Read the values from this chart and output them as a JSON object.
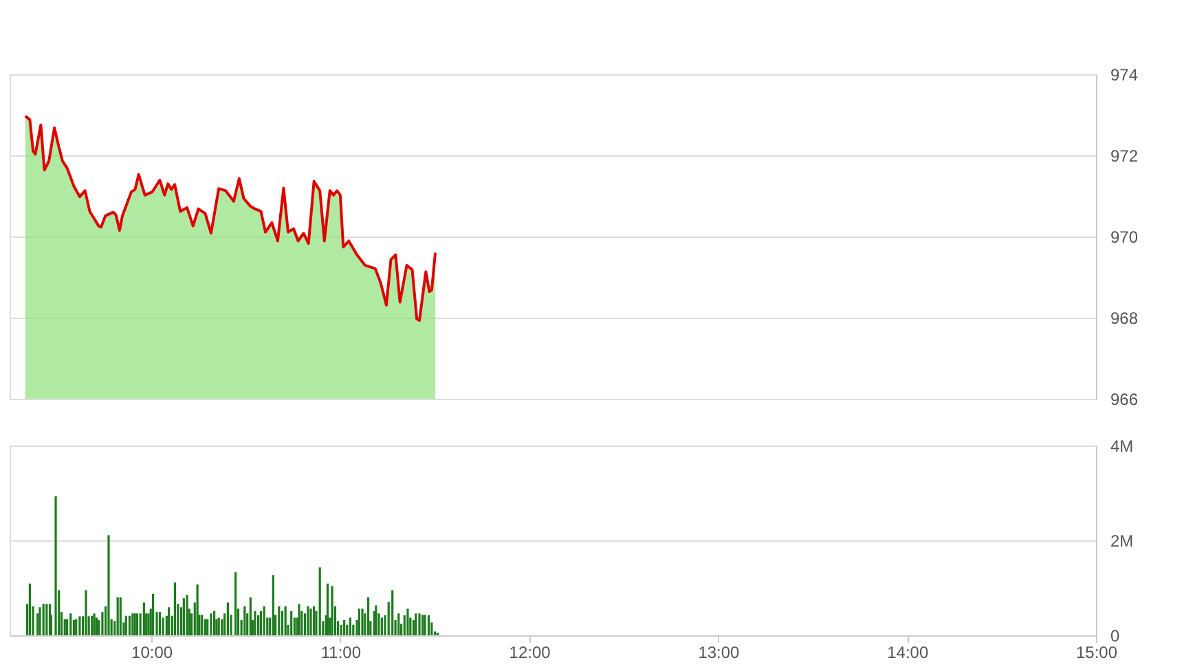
{
  "chart_data": [
    {
      "type": "area",
      "tick_labels": "y",
      "grid": "y",
      "xlim": [
        9.25,
        15
      ],
      "ylim": [
        966,
        974
      ],
      "yticks": [
        966,
        968,
        970,
        972,
        974
      ],
      "x": [
        9.333,
        9.357,
        9.374,
        9.386,
        9.415,
        9.434,
        9.458,
        9.487,
        9.511,
        9.53,
        9.554,
        9.59,
        9.621,
        9.649,
        9.674,
        9.721,
        9.734,
        9.757,
        9.798,
        9.813,
        9.832,
        9.847,
        9.894,
        9.914,
        9.933,
        9.966,
        10.005,
        10.045,
        10.07,
        10.088,
        10.106,
        10.124,
        10.153,
        10.189,
        10.221,
        10.249,
        10.285,
        10.316,
        10.357,
        10.393,
        10.436,
        10.465,
        10.489,
        10.525,
        10.549,
        10.58,
        10.604,
        10.638,
        10.669,
        10.7,
        10.724,
        10.753,
        10.777,
        10.806,
        10.832,
        10.861,
        10.892,
        10.916,
        10.945,
        10.964,
        10.983,
        11.0,
        11.016,
        11.045,
        11.088,
        11.131,
        11.185,
        11.213,
        11.244,
        11.268,
        11.293,
        11.316,
        11.352,
        11.381,
        11.405,
        11.419,
        11.453,
        11.472,
        11.484,
        11.503
      ],
      "series": [
        {
          "color": "#e00000",
          "values": [
            972.97,
            972.88,
            972.11,
            972.03,
            972.75,
            971.64,
            971.86,
            972.68,
            972.2,
            971.86,
            971.69,
            971.24,
            970.98,
            971.13,
            970.62,
            970.26,
            970.23,
            970.51,
            970.6,
            970.53,
            970.15,
            970.51,
            971.1,
            971.16,
            971.53,
            971.02,
            971.1,
            971.39,
            971.02,
            971.3,
            971.16,
            971.28,
            970.62,
            970.71,
            970.26,
            970.68,
            970.57,
            970.08,
            971.18,
            971.13,
            970.87,
            971.43,
            970.94,
            970.74,
            970.68,
            970.62,
            970.11,
            970.34,
            969.89,
            971.19,
            970.11,
            970.19,
            969.89,
            970.08,
            969.83,
            971.36,
            971.13,
            969.89,
            971.13,
            971.02,
            971.13,
            971.02,
            969.74,
            969.89,
            969.55,
            969.29,
            969.21,
            968.87,
            968.31,
            969.43,
            969.55,
            968.38,
            969.29,
            969.18,
            967.97,
            967.93,
            969.13,
            968.64,
            968.68,
            969.6
          ]
        }
      ]
    },
    {
      "type": "bar",
      "grid": "y",
      "xlim": [
        9.25,
        15
      ],
      "xticks": [
        {
          "value": 10,
          "label": "10:00"
        },
        {
          "value": 11,
          "label": "11:00"
        },
        {
          "value": 12,
          "label": "12:00"
        },
        {
          "value": 13,
          "label": "13:00"
        },
        {
          "value": 14,
          "label": "14:00"
        },
        {
          "value": 15,
          "label": "15:00"
        }
      ],
      "ylim": [
        0,
        4
      ],
      "yticks": [
        0,
        {
          "value": 2,
          "label": "2M"
        },
        {
          "value": 4,
          "label": "4M"
        }
      ],
      "x": [
        9.343,
        9.357,
        9.374,
        9.398,
        9.41,
        9.429,
        9.446,
        9.463,
        9.47,
        9.494,
        9.511,
        9.525,
        9.542,
        9.554,
        9.573,
        9.59,
        9.602,
        9.621,
        9.638,
        9.654,
        9.669,
        9.686,
        9.698,
        9.71,
        9.722,
        9.741,
        9.758,
        9.774,
        9.789,
        9.806,
        9.822,
        9.837,
        9.854,
        9.866,
        9.885,
        9.901,
        9.913,
        9.925,
        9.942,
        9.961,
        9.973,
        9.985,
        9.997,
        10.009,
        10.029,
        10.045,
        10.062,
        10.081,
        10.093,
        10.11,
        10.125,
        10.141,
        10.158,
        10.172,
        10.189,
        10.201,
        10.213,
        10.23,
        10.244,
        10.254,
        10.268,
        10.285,
        10.297,
        10.316,
        10.333,
        10.345,
        10.357,
        10.374,
        10.388,
        10.405,
        10.422,
        10.446,
        10.46,
        10.477,
        10.494,
        10.508,
        10.525,
        10.537,
        10.549,
        10.566,
        10.58,
        10.597,
        10.614,
        10.628,
        10.645,
        10.657,
        10.676,
        10.693,
        10.71,
        10.724,
        10.741,
        10.758,
        10.772,
        10.782,
        10.796,
        10.813,
        10.829,
        10.844,
        10.861,
        10.873,
        10.892,
        10.909,
        10.925,
        10.933,
        10.945,
        10.957,
        10.973,
        10.988,
        11.005,
        11.021,
        11.036,
        11.053,
        11.069,
        11.088,
        11.1,
        11.117,
        11.131,
        11.148,
        11.16,
        11.18,
        11.189,
        11.204,
        11.22,
        11.237,
        11.256,
        11.276,
        11.292,
        11.309,
        11.323,
        11.34,
        11.357,
        11.371,
        11.388,
        11.4,
        11.419,
        11.436,
        11.448,
        11.468,
        11.484,
        11.501,
        11.515
      ],
      "series": [
        {
          "color": "#1e7b1e",
          "values": [
            0.66,
            1.09,
            0.61,
            0.46,
            0.59,
            0.66,
            0.66,
            0.66,
            0.43,
            2.93,
            0.95,
            0.49,
            0.34,
            0.34,
            0.46,
            0.32,
            0.34,
            0.4,
            0.4,
            0.95,
            0.4,
            0.41,
            0.46,
            0.37,
            0.32,
            0.49,
            0.61,
            2.11,
            0.34,
            0.3,
            0.8,
            0.8,
            0.27,
            0.41,
            0.41,
            0.46,
            0.46,
            0.46,
            0.46,
            0.69,
            0.46,
            0.46,
            0.56,
            0.87,
            0.49,
            0.49,
            0.37,
            0.41,
            0.59,
            0.41,
            1.11,
            0.66,
            0.59,
            0.78,
            0.85,
            0.56,
            0.46,
            0.69,
            1.07,
            0.43,
            0.43,
            0.34,
            0.34,
            0.46,
            0.51,
            0.34,
            0.37,
            0.34,
            0.46,
            0.69,
            0.43,
            1.33,
            0.56,
            0.32,
            0.61,
            0.46,
            0.8,
            0.32,
            0.51,
            0.42,
            0.51,
            0.61,
            0.37,
            0.37,
            1.27,
            0.43,
            0.61,
            0.51,
            0.61,
            0.22,
            0.51,
            0.37,
            0.37,
            0.66,
            0.51,
            0.46,
            0.61,
            0.56,
            0.61,
            0.51,
            1.43,
            0.3,
            0.42,
            1.09,
            0.37,
            1.04,
            0.61,
            0.3,
            0.22,
            0.32,
            0.22,
            0.37,
            0.22,
            0.32,
            0.56,
            0.56,
            0.46,
            0.8,
            0.3,
            0.51,
            0.63,
            0.46,
            0.37,
            0.42,
            0.7,
            0.95,
            0.32,
            0.46,
            0.24,
            0.42,
            0.56,
            0.37,
            0.32,
            0.46,
            0.46,
            0.43,
            0.43,
            0.42,
            0.27,
            0.08,
            0.05
          ]
        }
      ]
    }
  ]
}
